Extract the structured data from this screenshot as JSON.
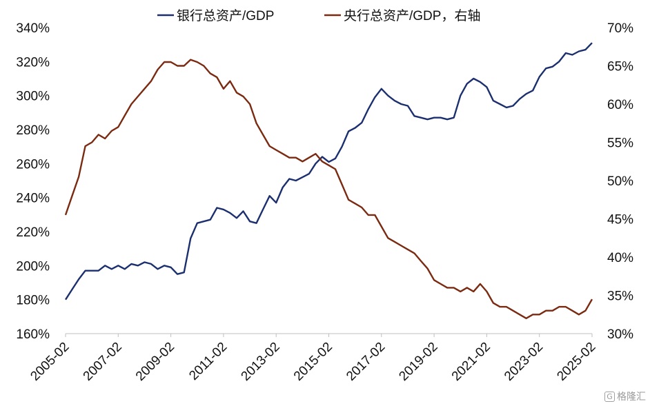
{
  "chart_data": {
    "type": "line",
    "legend": {
      "position": "top-center"
    },
    "series": [
      {
        "name": "银行总资产/GDP",
        "axis": "left",
        "color": "#1b2f6e",
        "points": [
          [
            "2005-02",
            180
          ],
          [
            "2005-05",
            186
          ],
          [
            "2005-08",
            192
          ],
          [
            "2005-11",
            197
          ],
          [
            "2006-02",
            197
          ],
          [
            "2006-05",
            197
          ],
          [
            "2006-08",
            200
          ],
          [
            "2006-11",
            198
          ],
          [
            "2007-02",
            200
          ],
          [
            "2007-05",
            198
          ],
          [
            "2007-08",
            201
          ],
          [
            "2007-11",
            200
          ],
          [
            "2008-02",
            202
          ],
          [
            "2008-05",
            201
          ],
          [
            "2008-08",
            198
          ],
          [
            "2008-11",
            200
          ],
          [
            "2009-02",
            199
          ],
          [
            "2009-05",
            195
          ],
          [
            "2009-08",
            196
          ],
          [
            "2009-11",
            216
          ],
          [
            "2010-02",
            225
          ],
          [
            "2010-05",
            226
          ],
          [
            "2010-08",
            227
          ],
          [
            "2010-11",
            234
          ],
          [
            "2011-02",
            233
          ],
          [
            "2011-05",
            231
          ],
          [
            "2011-08",
            228
          ],
          [
            "2011-11",
            232
          ],
          [
            "2012-02",
            226
          ],
          [
            "2012-05",
            225
          ],
          [
            "2012-08",
            233
          ],
          [
            "2012-11",
            241
          ],
          [
            "2013-02",
            237
          ],
          [
            "2013-05",
            246
          ],
          [
            "2013-08",
            251
          ],
          [
            "2013-11",
            250
          ],
          [
            "2014-02",
            252
          ],
          [
            "2014-05",
            254
          ],
          [
            "2014-08",
            260
          ],
          [
            "2014-11",
            264
          ],
          [
            "2015-02",
            261
          ],
          [
            "2015-05",
            263
          ],
          [
            "2015-08",
            270
          ],
          [
            "2015-11",
            279
          ],
          [
            "2016-02",
            281
          ],
          [
            "2016-05",
            284
          ],
          [
            "2016-08",
            292
          ],
          [
            "2016-11",
            299
          ],
          [
            "2017-02",
            304
          ],
          [
            "2017-05",
            300
          ],
          [
            "2017-08",
            297
          ],
          [
            "2017-11",
            295
          ],
          [
            "2018-02",
            294
          ],
          [
            "2018-05",
            288
          ],
          [
            "2018-08",
            287
          ],
          [
            "2018-11",
            286
          ],
          [
            "2019-02",
            287
          ],
          [
            "2019-05",
            287
          ],
          [
            "2019-08",
            286
          ],
          [
            "2019-11",
            287
          ],
          [
            "2020-02",
            300
          ],
          [
            "2020-05",
            307
          ],
          [
            "2020-08",
            310
          ],
          [
            "2020-11",
            308
          ],
          [
            "2021-02",
            305
          ],
          [
            "2021-05",
            297
          ],
          [
            "2021-08",
            295
          ],
          [
            "2021-11",
            293
          ],
          [
            "2022-02",
            294
          ],
          [
            "2022-05",
            298
          ],
          [
            "2022-08",
            301
          ],
          [
            "2022-11",
            303
          ],
          [
            "2023-02",
            311
          ],
          [
            "2023-05",
            316
          ],
          [
            "2023-08",
            317
          ],
          [
            "2023-11",
            320
          ],
          [
            "2024-02",
            325
          ],
          [
            "2024-05",
            324
          ],
          [
            "2024-08",
            326
          ],
          [
            "2024-11",
            327
          ],
          [
            "2025-02",
            331
          ]
        ]
      },
      {
        "name": "央行总资产/GDP，右轴",
        "axis": "right",
        "color": "#7a2a10",
        "points": [
          [
            "2005-02",
            45.5
          ],
          [
            "2005-05",
            48.0
          ],
          [
            "2005-08",
            50.5
          ],
          [
            "2005-11",
            54.5
          ],
          [
            "2006-02",
            55.0
          ],
          [
            "2006-05",
            56.0
          ],
          [
            "2006-08",
            55.5
          ],
          [
            "2006-11",
            56.5
          ],
          [
            "2007-02",
            57.0
          ],
          [
            "2007-05",
            58.5
          ],
          [
            "2007-08",
            60.0
          ],
          [
            "2007-11",
            61.0
          ],
          [
            "2008-02",
            62.0
          ],
          [
            "2008-05",
            63.0
          ],
          [
            "2008-08",
            64.5
          ],
          [
            "2008-11",
            65.5
          ],
          [
            "2009-02",
            65.5
          ],
          [
            "2009-05",
            65.0
          ],
          [
            "2009-08",
            65.0
          ],
          [
            "2009-11",
            65.8
          ],
          [
            "2010-02",
            65.5
          ],
          [
            "2010-05",
            65.0
          ],
          [
            "2010-08",
            64.0
          ],
          [
            "2010-11",
            63.5
          ],
          [
            "2011-02",
            62.0
          ],
          [
            "2011-05",
            63.0
          ],
          [
            "2011-08",
            61.5
          ],
          [
            "2011-11",
            61.0
          ],
          [
            "2012-02",
            60.0
          ],
          [
            "2012-05",
            57.5
          ],
          [
            "2012-08",
            56.0
          ],
          [
            "2012-11",
            54.5
          ],
          [
            "2013-02",
            54.0
          ],
          [
            "2013-05",
            53.5
          ],
          [
            "2013-08",
            53.0
          ],
          [
            "2013-11",
            53.0
          ],
          [
            "2014-02",
            52.5
          ],
          [
            "2014-05",
            53.0
          ],
          [
            "2014-08",
            53.5
          ],
          [
            "2014-11",
            52.5
          ],
          [
            "2015-02",
            52.0
          ],
          [
            "2015-05",
            51.5
          ],
          [
            "2015-08",
            49.5
          ],
          [
            "2015-11",
            47.5
          ],
          [
            "2016-02",
            47.0
          ],
          [
            "2016-05",
            46.5
          ],
          [
            "2016-08",
            45.5
          ],
          [
            "2016-11",
            45.5
          ],
          [
            "2017-02",
            44.0
          ],
          [
            "2017-05",
            42.5
          ],
          [
            "2017-08",
            42.0
          ],
          [
            "2017-11",
            41.5
          ],
          [
            "2018-02",
            41.0
          ],
          [
            "2018-05",
            40.5
          ],
          [
            "2018-08",
            39.5
          ],
          [
            "2018-11",
            38.5
          ],
          [
            "2019-02",
            37.0
          ],
          [
            "2019-05",
            36.5
          ],
          [
            "2019-08",
            36.0
          ],
          [
            "2019-11",
            36.0
          ],
          [
            "2020-02",
            35.5
          ],
          [
            "2020-05",
            36.0
          ],
          [
            "2020-08",
            35.5
          ],
          [
            "2020-11",
            36.5
          ],
          [
            "2021-02",
            35.5
          ],
          [
            "2021-05",
            34.0
          ],
          [
            "2021-08",
            33.5
          ],
          [
            "2021-11",
            33.5
          ],
          [
            "2022-02",
            33.0
          ],
          [
            "2022-05",
            32.5
          ],
          [
            "2022-08",
            32.0
          ],
          [
            "2022-11",
            32.5
          ],
          [
            "2023-02",
            32.5
          ],
          [
            "2023-05",
            33.0
          ],
          [
            "2023-08",
            33.0
          ],
          [
            "2023-11",
            33.5
          ],
          [
            "2024-02",
            33.5
          ],
          [
            "2024-05",
            33.0
          ],
          [
            "2024-08",
            32.5
          ],
          [
            "2024-11",
            33.0
          ],
          [
            "2025-02",
            34.5
          ]
        ]
      }
    ],
    "x_ticks": [
      "2005-02",
      "2007-02",
      "2009-02",
      "2011-02",
      "2013-02",
      "2015-02",
      "2017-02",
      "2019-02",
      "2021-02",
      "2023-02",
      "2025-02"
    ],
    "x_range": [
      "2005-02",
      "2025-02"
    ],
    "y_left": {
      "ylim": [
        160,
        340
      ],
      "ticks": [
        160,
        180,
        200,
        220,
        240,
        260,
        280,
        300,
        320,
        340
      ],
      "tick_labels": [
        "160%",
        "180%",
        "200%",
        "220%",
        "240%",
        "260%",
        "280%",
        "300%",
        "320%",
        "340%"
      ]
    },
    "y_right": {
      "ylim": [
        30,
        70
      ],
      "ticks": [
        30,
        35,
        40,
        45,
        50,
        55,
        60,
        65,
        70
      ],
      "tick_labels": [
        "30%",
        "35%",
        "40%",
        "45%",
        "50%",
        "55%",
        "60%",
        "65%",
        "70%"
      ]
    },
    "grid": false
  },
  "watermark": {
    "text": "格隆汇",
    "icon": "g-logo-icon"
  }
}
